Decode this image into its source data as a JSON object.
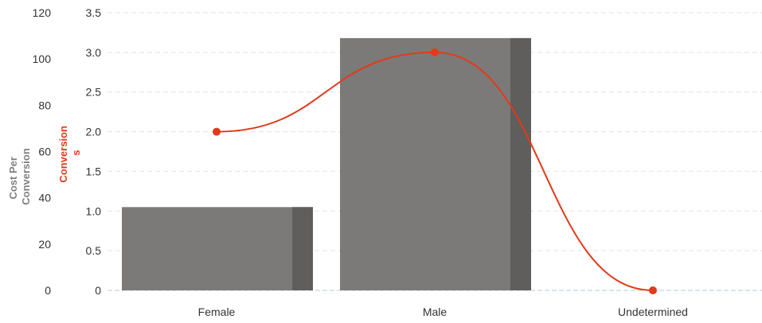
{
  "chart_data": {
    "type": "bar",
    "categories": [
      "Female",
      "Male",
      "Undetermined"
    ],
    "series": [
      {
        "name": "Cost Per Conversion",
        "type": "bar",
        "axis": "left",
        "values": [
          1.05,
          3.18,
          0
        ],
        "color": "#7b7a78",
        "shade_color": "#5f5e5c"
      },
      {
        "name": "Conversions",
        "type": "line",
        "axis": "right",
        "values": [
          2,
          3,
          0
        ],
        "color": "#e23a1a"
      }
    ],
    "left_axis": {
      "label": "Cost Per Conversion",
      "ticks": [
        "0",
        "20",
        "40",
        "60",
        "80",
        "100",
        "120"
      ],
      "ylim": [
        0,
        120
      ]
    },
    "right_axis": {
      "label_lines": [
        "Conversion",
        "s"
      ],
      "ticks": [
        "0",
        "0.5",
        "1.0",
        "1.5",
        "2.0",
        "2.5",
        "3.0",
        "3.5"
      ],
      "ylim": [
        0,
        3.5
      ]
    },
    "grid": true,
    "gridline_color": "#dde4ec",
    "baseline_color": "#b8c8da"
  }
}
